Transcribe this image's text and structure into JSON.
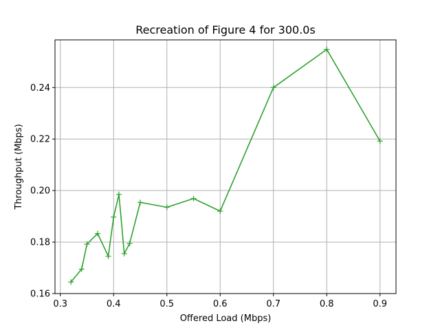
{
  "chart_data": {
    "type": "line",
    "title": "Recreation of Figure 4 for 300.0s",
    "xlabel": "Offered Load (Mbps)",
    "ylabel": "Throughput (Mbps)",
    "xlim": [
      0.29,
      0.93
    ],
    "ylim": [
      0.16,
      0.2585
    ],
    "xticks": [
      {
        "value": 0.3,
        "label": "0.3"
      },
      {
        "value": 0.4,
        "label": "0.4"
      },
      {
        "value": 0.5,
        "label": "0.5"
      },
      {
        "value": 0.6,
        "label": "0.6"
      },
      {
        "value": 0.7,
        "label": "0.7"
      },
      {
        "value": 0.8,
        "label": "0.8"
      },
      {
        "value": 0.9,
        "label": "0.9"
      }
    ],
    "yticks": [
      {
        "value": 0.16,
        "label": "0.16"
      },
      {
        "value": 0.18,
        "label": "0.18"
      },
      {
        "value": 0.2,
        "label": "0.20"
      },
      {
        "value": 0.22,
        "label": "0.22"
      },
      {
        "value": 0.24,
        "label": "0.24"
      }
    ],
    "grid": true,
    "series": [
      {
        "color": "#2ca02c",
        "marker": "plus",
        "x": [
          0.32,
          0.34,
          0.35,
          0.37,
          0.39,
          0.4,
          0.41,
          0.42,
          0.43,
          0.45,
          0.5,
          0.55,
          0.6,
          0.7,
          0.8,
          0.9
        ],
        "y": [
          0.1645,
          0.1695,
          0.1792,
          0.1833,
          0.1745,
          0.1897,
          0.1985,
          0.1755,
          0.1794,
          0.1954,
          0.1935,
          0.1969,
          0.192,
          0.24,
          0.2548,
          0.2192
        ]
      }
    ]
  }
}
